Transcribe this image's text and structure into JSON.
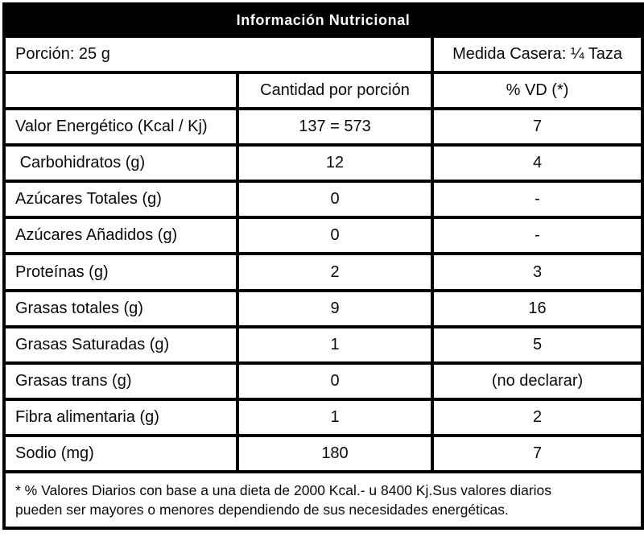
{
  "title": "Información Nutricional",
  "portion": {
    "label": "Porción: 25 g",
    "household_measure": "Medida Casera: ¼ Taza"
  },
  "columns": {
    "amount": "Cantidad por porción",
    "daily_value": "% VD (*)"
  },
  "rows": [
    {
      "label": "Valor Energético (Kcal / Kj)",
      "amount": "137 = 573",
      "vd": "7"
    },
    {
      "label": " Carbohidratos (g)",
      "amount": "12",
      "vd": "4"
    },
    {
      "label": "Azúcares Totales (g)",
      "amount": "0",
      "vd": "-"
    },
    {
      "label": "Azúcares Añadidos (g)",
      "amount": "0",
      "vd": "-"
    },
    {
      "label": "Proteínas (g)",
      "amount": "2",
      "vd": "3"
    },
    {
      "label": "Grasas totales (g)",
      "amount": "9",
      "vd": "16"
    },
    {
      "label": "Grasas Saturadas (g)",
      "amount": "1",
      "vd": "5"
    },
    {
      "label": "Grasas trans (g)",
      "amount": "0",
      "vd": "(no declarar)"
    },
    {
      "label": "Fibra alimentaria (g)",
      "amount": "1",
      "vd": "2"
    },
    {
      "label": "Sodio (mg)",
      "amount": "180",
      "vd": "7"
    }
  ],
  "footnote": {
    "line1": "* % Valores Diarios con base a una dieta de 2000 Kcal.- u 8400 Kj.Sus valores diarios",
    "line2": "pueden ser mayores o menores dependiendo de sus necesidades energéticas."
  },
  "colors": {
    "border": "#000000",
    "title_bg": "#000000",
    "title_text": "#ffffff",
    "cell_bg": "#ffffff",
    "text": "#0a0a0a"
  }
}
